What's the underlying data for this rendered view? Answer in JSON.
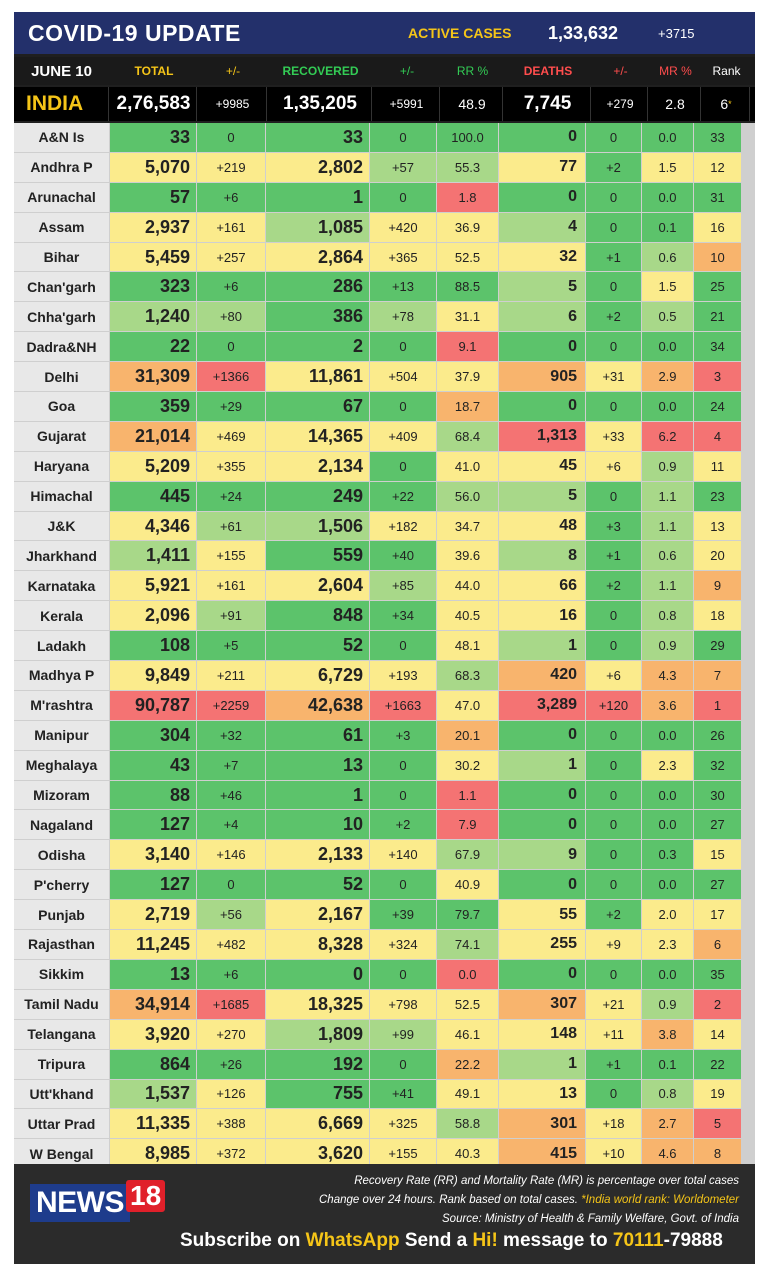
{
  "title": "COVID-19 UPDATE",
  "active_cases": {
    "label": "ACTIVE CASES",
    "value": "1,33,632",
    "delta": "+3715"
  },
  "headers": {
    "date": "JUNE 10",
    "total": "TOTAL",
    "total_delta": "+/-",
    "recovered": "RECOVERED",
    "rec_delta": "+/-",
    "rr": "RR %",
    "deaths": "DEATHS",
    "death_delta": "+/-",
    "mr": "MR %",
    "rank": "Rank"
  },
  "india": {
    "name": "INDIA",
    "total": "2,76,583",
    "total_delta": "+9985",
    "recovered": "1,35,205",
    "rec_delta": "+5991",
    "rr": "48.9",
    "deaths": "7,745",
    "death_delta": "+279",
    "mr": "2.8",
    "rank": "6",
    "rank_mark": "*"
  },
  "states": [
    {
      "name": "A&N Is",
      "total": "33",
      "td": "0",
      "rec": "33",
      "rd": "0",
      "rr": "100.0",
      "deaths": "0",
      "dd": "0",
      "mr": "0.0",
      "rank": "33"
    },
    {
      "name": "Andhra P",
      "total": "5,070",
      "td": "+219",
      "rec": "2,802",
      "rd": "+57",
      "rr": "55.3",
      "deaths": "77",
      "dd": "+2",
      "mr": "1.5",
      "rank": "12"
    },
    {
      "name": "Arunachal",
      "total": "57",
      "td": "+6",
      "rec": "1",
      "rd": "0",
      "rr": "1.8",
      "deaths": "0",
      "dd": "0",
      "mr": "0.0",
      "rank": "31"
    },
    {
      "name": "Assam",
      "total": "2,937",
      "td": "+161",
      "rec": "1,085",
      "rd": "+420",
      "rr": "36.9",
      "deaths": "4",
      "dd": "0",
      "mr": "0.1",
      "rank": "16"
    },
    {
      "name": "Bihar",
      "total": "5,459",
      "td": "+257",
      "rec": "2,864",
      "rd": "+365",
      "rr": "52.5",
      "deaths": "32",
      "dd": "+1",
      "mr": "0.6",
      "rank": "10"
    },
    {
      "name": "Chan'garh",
      "total": "323",
      "td": "+6",
      "rec": "286",
      "rd": "+13",
      "rr": "88.5",
      "deaths": "5",
      "dd": "0",
      "mr": "1.5",
      "rank": "25"
    },
    {
      "name": "Chha'garh",
      "total": "1,240",
      "td": "+80",
      "rec": "386",
      "rd": "+78",
      "rr": "31.1",
      "deaths": "6",
      "dd": "+2",
      "mr": "0.5",
      "rank": "21"
    },
    {
      "name": "Dadra&NH",
      "total": "22",
      "td": "0",
      "rec": "2",
      "rd": "0",
      "rr": "9.1",
      "deaths": "0",
      "dd": "0",
      "mr": "0.0",
      "rank": "34"
    },
    {
      "name": "Delhi",
      "total": "31,309",
      "td": "+1366",
      "rec": "11,861",
      "rd": "+504",
      "rr": "37.9",
      "deaths": "905",
      "dd": "+31",
      "mr": "2.9",
      "rank": "3"
    },
    {
      "name": "Goa",
      "total": "359",
      "td": "+29",
      "rec": "67",
      "rd": "0",
      "rr": "18.7",
      "deaths": "0",
      "dd": "0",
      "mr": "0.0",
      "rank": "24"
    },
    {
      "name": "Gujarat",
      "total": "21,014",
      "td": "+469",
      "rec": "14,365",
      "rd": "+409",
      "rr": "68.4",
      "deaths": "1,313",
      "dd": "+33",
      "mr": "6.2",
      "rank": "4"
    },
    {
      "name": "Haryana",
      "total": "5,209",
      "td": "+355",
      "rec": "2,134",
      "rd": "0",
      "rr": "41.0",
      "deaths": "45",
      "dd": "+6",
      "mr": "0.9",
      "rank": "11"
    },
    {
      "name": "Himachal",
      "total": "445",
      "td": "+24",
      "rec": "249",
      "rd": "+22",
      "rr": "56.0",
      "deaths": "5",
      "dd": "0",
      "mr": "1.1",
      "rank": "23"
    },
    {
      "name": "J&K",
      "total": "4,346",
      "td": "+61",
      "rec": "1,506",
      "rd": "+182",
      "rr": "34.7",
      "deaths": "48",
      "dd": "+3",
      "mr": "1.1",
      "rank": "13"
    },
    {
      "name": "Jharkhand",
      "total": "1,411",
      "td": "+155",
      "rec": "559",
      "rd": "+40",
      "rr": "39.6",
      "deaths": "8",
      "dd": "+1",
      "mr": "0.6",
      "rank": "20"
    },
    {
      "name": "Karnataka",
      "total": "5,921",
      "td": "+161",
      "rec": "2,604",
      "rd": "+85",
      "rr": "44.0",
      "deaths": "66",
      "dd": "+2",
      "mr": "1.1",
      "rank": "9"
    },
    {
      "name": "Kerala",
      "total": "2,096",
      "td": "+91",
      "rec": "848",
      "rd": "+34",
      "rr": "40.5",
      "deaths": "16",
      "dd": "0",
      "mr": "0.8",
      "rank": "18"
    },
    {
      "name": "Ladakh",
      "total": "108",
      "td": "+5",
      "rec": "52",
      "rd": "0",
      "rr": "48.1",
      "deaths": "1",
      "dd": "0",
      "mr": "0.9",
      "rank": "29"
    },
    {
      "name": "Madhya P",
      "total": "9,849",
      "td": "+211",
      "rec": "6,729",
      "rd": "+193",
      "rr": "68.3",
      "deaths": "420",
      "dd": "+6",
      "mr": "4.3",
      "rank": "7"
    },
    {
      "name": "M'rashtra",
      "total": "90,787",
      "td": "+2259",
      "rec": "42,638",
      "rd": "+1663",
      "rr": "47.0",
      "deaths": "3,289",
      "dd": "+120",
      "mr": "3.6",
      "rank": "1"
    },
    {
      "name": "Manipur",
      "total": "304",
      "td": "+32",
      "rec": "61",
      "rd": "+3",
      "rr": "20.1",
      "deaths": "0",
      "dd": "0",
      "mr": "0.0",
      "rank": "26"
    },
    {
      "name": "Meghalaya",
      "total": "43",
      "td": "+7",
      "rec": "13",
      "rd": "0",
      "rr": "30.2",
      "deaths": "1",
      "dd": "0",
      "mr": "2.3",
      "rank": "32"
    },
    {
      "name": "Mizoram",
      "total": "88",
      "td": "+46",
      "rec": "1",
      "rd": "0",
      "rr": "1.1",
      "deaths": "0",
      "dd": "0",
      "mr": "0.0",
      "rank": "30"
    },
    {
      "name": "Nagaland",
      "total": "127",
      "td": "+4",
      "rec": "10",
      "rd": "+2",
      "rr": "7.9",
      "deaths": "0",
      "dd": "0",
      "mr": "0.0",
      "rank": "27"
    },
    {
      "name": "Odisha",
      "total": "3,140",
      "td": "+146",
      "rec": "2,133",
      "rd": "+140",
      "rr": "67.9",
      "deaths": "9",
      "dd": "0",
      "mr": "0.3",
      "rank": "15"
    },
    {
      "name": "P'cherry",
      "total": "127",
      "td": "0",
      "rec": "52",
      "rd": "0",
      "rr": "40.9",
      "deaths": "0",
      "dd": "0",
      "mr": "0.0",
      "rank": "27"
    },
    {
      "name": "Punjab",
      "total": "2,719",
      "td": "+56",
      "rec": "2,167",
      "rd": "+39",
      "rr": "79.7",
      "deaths": "55",
      "dd": "+2",
      "mr": "2.0",
      "rank": "17"
    },
    {
      "name": "Rajasthan",
      "total": "11,245",
      "td": "+482",
      "rec": "8,328",
      "rd": "+324",
      "rr": "74.1",
      "deaths": "255",
      "dd": "+9",
      "mr": "2.3",
      "rank": "6"
    },
    {
      "name": "Sikkim",
      "total": "13",
      "td": "+6",
      "rec": "0",
      "rd": "0",
      "rr": "0.0",
      "deaths": "0",
      "dd": "0",
      "mr": "0.0",
      "rank": "35"
    },
    {
      "name": "Tamil Nadu",
      "total": "34,914",
      "td": "+1685",
      "rec": "18,325",
      "rd": "+798",
      "rr": "52.5",
      "deaths": "307",
      "dd": "+21",
      "mr": "0.9",
      "rank": "2"
    },
    {
      "name": "Telangana",
      "total": "3,920",
      "td": "+270",
      "rec": "1,809",
      "rd": "+99",
      "rr": "46.1",
      "deaths": "148",
      "dd": "+11",
      "mr": "3.8",
      "rank": "14"
    },
    {
      "name": "Tripura",
      "total": "864",
      "td": "+26",
      "rec": "192",
      "rd": "0",
      "rr": "22.2",
      "deaths": "1",
      "dd": "+1",
      "mr": "0.1",
      "rank": "22"
    },
    {
      "name": "Utt'khand",
      "total": "1,537",
      "td": "+126",
      "rec": "755",
      "rd": "+41",
      "rr": "49.1",
      "deaths": "13",
      "dd": "0",
      "mr": "0.8",
      "rank": "19"
    },
    {
      "name": "Uttar Prad",
      "total": "11,335",
      "td": "+388",
      "rec": "6,669",
      "rd": "+325",
      "rr": "58.8",
      "deaths": "301",
      "dd": "+18",
      "mr": "2.7",
      "rank": "5"
    },
    {
      "name": "W Bengal",
      "total": "8,985",
      "td": "+372",
      "rec": "3,620",
      "rd": "+155",
      "rr": "40.3",
      "deaths": "415",
      "dd": "+10",
      "mr": "4.6",
      "rank": "8"
    }
  ],
  "footer": {
    "note1": "Recovery Rate (RR) and Mortality Rate (MR) is percentage over total cases",
    "note2": "Change over 24 hours. Rank based on total cases.",
    "note2b": "*India world rank: Worldometer",
    "note3": "Source: Ministry of Health & Family Welfare, Govt. of India",
    "logo_text": "NEWS",
    "logo_num": "18",
    "sub1": "Subscribe on ",
    "sub_wa": "WhatsApp",
    "sub2": " Send a ",
    "sub_hi": "Hi!",
    "sub3": " message to ",
    "sub_num": "70111",
    "sub_num2": "-79888"
  },
  "colors": {
    "green": "#5cc36b",
    "lightgreen": "#a8d889",
    "yellow": "#fbeb8c",
    "orange": "#f8b46d",
    "red": "#f47373"
  }
}
